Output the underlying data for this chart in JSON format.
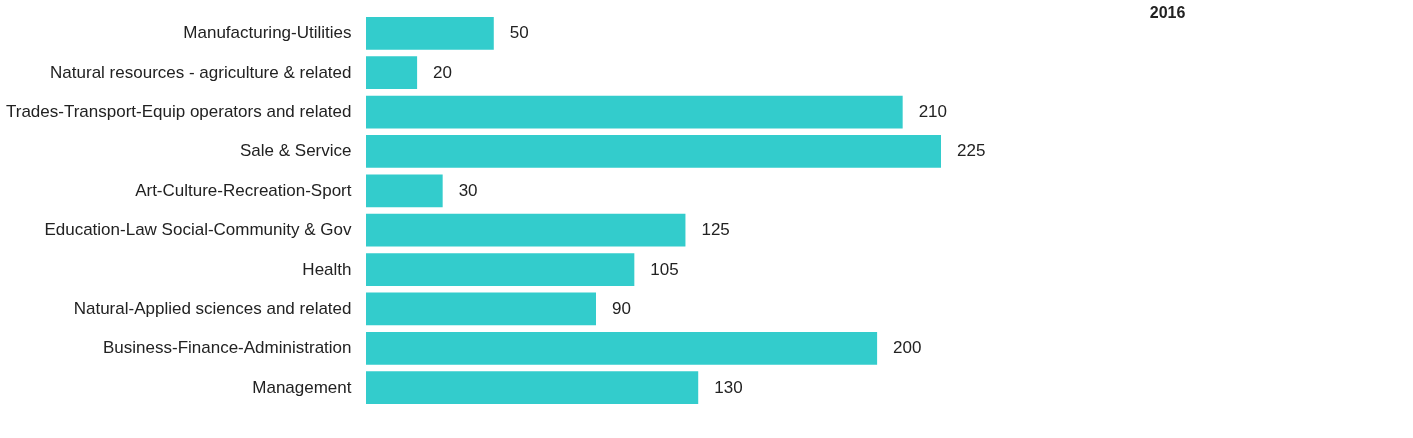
{
  "chart_data": {
    "type": "bar",
    "orientation": "horizontal",
    "title": "2016",
    "categories": [
      "Manufacturing-Utilities",
      "Natural resources - agriculture & related",
      "Trades-Transport-Equip operators and related",
      "Sale & Service",
      "Art-Culture-Recreation-Sport",
      "Education-Law Social-Community & Gov",
      "Health",
      "Natural-Applied sciences and related",
      "Business-Finance-Administration",
      "Management"
    ],
    "values": [
      50,
      20,
      210,
      225,
      30,
      125,
      105,
      90,
      200,
      130
    ],
    "color": "#33cccc",
    "data_labels": true,
    "tick_labels": "y"
  }
}
